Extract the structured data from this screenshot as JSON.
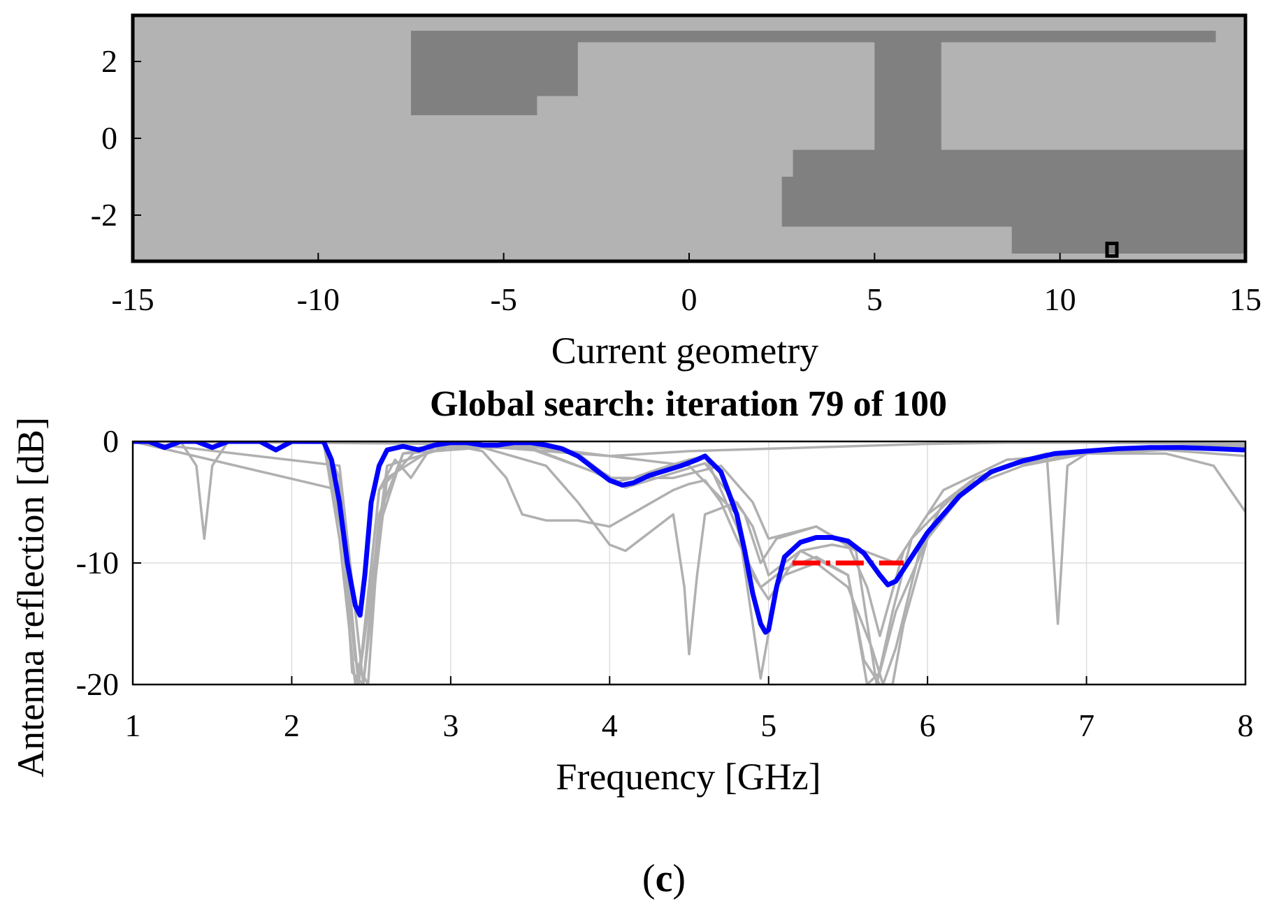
{
  "caption": {
    "open": "(",
    "letter": "c",
    "close": ")"
  },
  "chart_data": [
    {
      "type": "heatmap",
      "xlabel": "Current geometry",
      "xlim": [
        -15,
        15
      ],
      "ylim": [
        -3.2,
        3.2
      ],
      "xticks": [
        "-15",
        "-10",
        "-5",
        "0",
        "5",
        "10",
        "15"
      ],
      "yticks": [
        "2",
        "0",
        "-2"
      ],
      "colors": {
        "background": "#b3b3b3",
        "metal": "#808080",
        "frame": "#000000",
        "feed": "#000000"
      },
      "metal_regions": [
        {
          "x": [
            -7.5,
            14.2
          ],
          "y": [
            2.5,
            2.8
          ]
        },
        {
          "x": [
            -7.5,
            -3.0
          ],
          "y": [
            1.1,
            2.5
          ]
        },
        {
          "x": [
            -7.5,
            -4.1
          ],
          "y": [
            0.6,
            1.1
          ]
        },
        {
          "x": [
            5.0,
            6.8
          ],
          "y": [
            -0.3,
            2.5
          ]
        },
        {
          "x": [
            2.8,
            15.0
          ],
          "y": [
            -1.0,
            -0.3
          ]
        },
        {
          "x": [
            2.5,
            15.0
          ],
          "y": [
            -2.3,
            -1.0
          ]
        },
        {
          "x": [
            8.7,
            15.0
          ],
          "y": [
            -3.0,
            -2.3
          ]
        }
      ],
      "feed_point": {
        "x": 11.4,
        "y": -2.9
      }
    },
    {
      "type": "line",
      "title": "Global search: iteration 79 of 100",
      "xlabel": "Frequency [GHz]",
      "ylabel": "Antenna reflection [dB]",
      "xlim": [
        1,
        8
      ],
      "ylim": [
        -20,
        0
      ],
      "xticks": [
        "1",
        "2",
        "3",
        "4",
        "5",
        "6",
        "7",
        "8"
      ],
      "yticks": [
        "0",
        "-10",
        "-20"
      ],
      "grid": true,
      "colors": {
        "current": "#0000ff",
        "history": "#b0b0b0",
        "target": "#ff0000",
        "grid": "#dddddd"
      },
      "target": {
        "x": [
          5.15,
          5.85
        ],
        "y": -10
      },
      "series": [
        {
          "role": "current",
          "x": [
            1.0,
            1.1,
            1.2,
            1.3,
            1.4,
            1.5,
            1.6,
            1.7,
            1.8,
            1.9,
            2.0,
            2.1,
            2.2,
            2.25,
            2.3,
            2.35,
            2.4,
            2.43,
            2.46,
            2.5,
            2.55,
            2.6,
            2.7,
            2.8,
            2.9,
            3.0,
            3.1,
            3.2,
            3.3,
            3.4,
            3.5,
            3.6,
            3.7,
            3.8,
            3.9,
            4.0,
            4.08,
            4.15,
            4.25,
            4.35,
            4.45,
            4.55,
            4.6,
            4.7,
            4.8,
            4.85,
            4.9,
            4.95,
            4.98,
            5.0,
            5.05,
            5.1,
            5.2,
            5.3,
            5.4,
            5.5,
            5.6,
            5.7,
            5.75,
            5.8,
            5.9,
            6.0,
            6.2,
            6.4,
            6.6,
            6.8,
            7.0,
            7.2,
            7.4,
            7.6,
            7.8,
            8.0
          ],
          "y": [
            0,
            0,
            -0.5,
            0,
            0,
            -0.5,
            0,
            0,
            0,
            -0.7,
            0,
            0,
            0,
            -1.5,
            -5,
            -10,
            -13.5,
            -14.3,
            -11,
            -5,
            -2,
            -0.7,
            -0.4,
            -0.7,
            -0.3,
            -0.1,
            -0.1,
            -0.3,
            -0.3,
            -0.1,
            -0.1,
            -0.3,
            -0.6,
            -1.2,
            -2.2,
            -3.2,
            -3.6,
            -3.4,
            -2.8,
            -2.4,
            -2.0,
            -1.5,
            -1.2,
            -2.5,
            -6.0,
            -9.0,
            -12.5,
            -15.0,
            -15.7,
            -15.5,
            -12.0,
            -9.5,
            -8.3,
            -7.9,
            -7.9,
            -8.2,
            -9.2,
            -11.0,
            -11.8,
            -11.5,
            -9.5,
            -7.5,
            -4.5,
            -2.5,
            -1.6,
            -1.0,
            -0.8,
            -0.6,
            -0.5,
            -0.5,
            -0.6,
            -0.7
          ]
        },
        {
          "role": "history",
          "x": [
            1.0,
            1.3,
            1.4,
            1.45,
            1.5,
            1.6,
            2.0,
            2.2,
            2.3,
            2.38,
            2.45,
            2.55,
            2.7,
            3.0,
            3.5,
            3.8,
            3.95,
            4.05,
            4.15,
            4.3,
            4.5,
            4.6,
            4.7,
            4.8,
            4.9,
            5.0,
            5.1,
            5.3,
            5.5,
            5.65,
            5.72,
            5.8,
            5.95,
            6.1,
            6.4,
            6.7,
            7.0,
            7.5,
            8.0
          ],
          "y": [
            0,
            0,
            -2,
            -8,
            -2,
            0,
            0,
            0,
            -3,
            -19,
            -20,
            -6,
            -1,
            -0.2,
            -0.4,
            -1,
            -2.5,
            -3.3,
            -3.0,
            -2.3,
            -1.5,
            -1.2,
            -4,
            -7,
            -11,
            -13,
            -11,
            -10,
            -12,
            -17,
            -20,
            -17,
            -9,
            -5,
            -2.5,
            -1.3,
            -0.8,
            -0.5,
            -0.5
          ]
        },
        {
          "role": "history",
          "x": [
            1.0,
            2.0,
            2.2,
            2.3,
            2.4,
            2.45,
            2.55,
            2.65,
            2.75,
            2.85,
            3.0,
            3.2,
            3.35,
            3.45,
            3.6,
            3.8,
            4.0,
            4.2,
            4.4,
            4.5,
            4.6,
            4.7,
            4.8,
            4.95,
            5.1,
            5.3,
            5.5,
            5.62,
            5.7,
            5.8,
            6.0,
            6.2,
            6.5,
            7.0,
            7.5,
            8.0
          ],
          "y": [
            0,
            0,
            0,
            -8,
            -20,
            -17,
            -4,
            -1.5,
            -3,
            -1,
            -0.3,
            -0.8,
            -3,
            -6,
            -6.5,
            -6.5,
            -7,
            -5.5,
            -4,
            -3.5,
            -3.2,
            -5,
            -8,
            -12,
            -10.5,
            -9.5,
            -11,
            -20,
            -19,
            -14,
            -8,
            -4,
            -2,
            -1,
            -0.6,
            -0.5
          ]
        },
        {
          "role": "history",
          "x": [
            1.0,
            2.2,
            2.3,
            2.4,
            2.48,
            2.55,
            2.7,
            3.2,
            3.6,
            3.8,
            4.0,
            4.1,
            4.2,
            4.4,
            4.47,
            4.5,
            4.55,
            4.6,
            4.8,
            4.9,
            5.0,
            5.2,
            5.5,
            5.6,
            5.7,
            5.78,
            5.85,
            6.0,
            6.3,
            6.6,
            7.0,
            7.5,
            8.0
          ],
          "y": [
            0,
            0,
            -6,
            -18,
            -20,
            -7,
            -1,
            -0.5,
            -2,
            -5,
            -8.5,
            -9,
            -8,
            -6,
            -12,
            -17.5,
            -11,
            -6,
            -5,
            -7,
            -11,
            -9,
            -11,
            -18,
            -20,
            -20,
            -15,
            -8,
            -3,
            -1.5,
            -0.8,
            -0.5,
            -0.4
          ]
        },
        {
          "role": "history",
          "x": [
            1.0,
            2.3,
            2.45,
            2.6,
            2.9,
            3.5,
            4.0,
            4.5,
            4.8,
            4.95,
            5.05,
            5.2,
            5.4,
            5.6,
            5.8,
            6.0,
            6.3,
            6.6,
            6.75,
            6.82,
            6.88,
            7.0,
            7.5,
            8.0
          ],
          "y": [
            0,
            -2,
            -20,
            -3,
            -0.5,
            -0.4,
            -1.2,
            -2,
            -6,
            -19.5,
            -12,
            -9,
            -8.5,
            -9,
            -10,
            -6,
            -3,
            -1.5,
            -1,
            -15,
            -2,
            -1,
            -0.4,
            -0.3
          ]
        },
        {
          "role": "history",
          "x": [
            1.0,
            2.2,
            2.35,
            2.42,
            2.5,
            2.6,
            3.0,
            3.5,
            3.9,
            4.1,
            4.3,
            4.6,
            4.85,
            4.95,
            5.05,
            5.3,
            5.5,
            5.62,
            5.7,
            5.85,
            6.1,
            6.5,
            7.0,
            7.5,
            7.8,
            8.0
          ],
          "y": [
            0,
            0,
            -10,
            -20,
            -12,
            -2,
            -0.4,
            -0.6,
            -2.5,
            -3.8,
            -3,
            -1.8,
            -6,
            -10,
            -8,
            -7,
            -8.5,
            -12,
            -16,
            -9,
            -4,
            -1.5,
            -1,
            -1,
            -2,
            -5.8
          ]
        },
        {
          "role": "history",
          "x": [
            1.0,
            2.0,
            3.0,
            4.0,
            4.5,
            5.0,
            5.5,
            6.0,
            6.5,
            7.0,
            8.0
          ],
          "y": [
            0,
            -0.1,
            -0.2,
            -1.2,
            -0.8,
            -0.6,
            -0.4,
            -0.2,
            -0.1,
            -0.1,
            -0.2
          ]
        },
        {
          "role": "history",
          "x": [
            1.0,
            2.3,
            2.42,
            2.55,
            2.8,
            3.5,
            4.0,
            4.4,
            4.7,
            4.9,
            5.0,
            5.3,
            5.55,
            5.68,
            5.78,
            5.9,
            6.2,
            6.6,
            7.0,
            7.5,
            8.0
          ],
          "y": [
            0,
            -4,
            -20,
            -4,
            -0.5,
            -0.5,
            -3,
            -3,
            -2,
            -5,
            -8,
            -7,
            -9,
            -20,
            -14,
            -8,
            -4,
            -2,
            -1,
            -0.7,
            -1.2
          ]
        }
      ]
    }
  ]
}
